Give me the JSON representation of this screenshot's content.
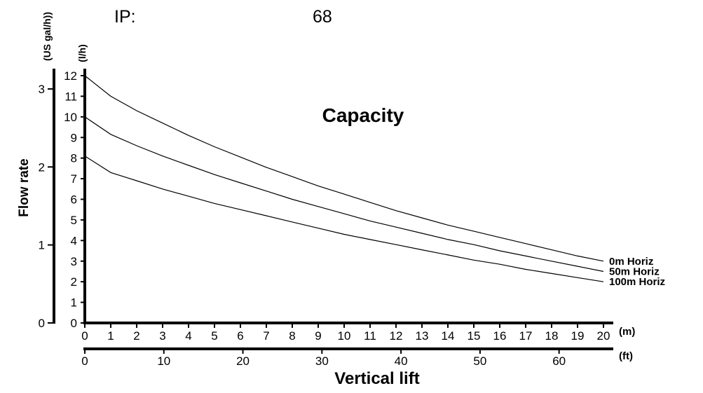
{
  "header": {
    "ip_label": "IP:",
    "ip_value": "68"
  },
  "chart_data": {
    "type": "line",
    "title": "Capacity",
    "xlabel": "Vertical lift",
    "ylabel": "Flow rate",
    "x_unit_primary": "(m)",
    "x_unit_secondary": "(ft)",
    "y_unit_primary": "(l/h)",
    "y_unit_secondary": "(US gal/h))",
    "xlim": [
      0,
      20
    ],
    "ylim": [
      0,
      12.5
    ],
    "x_ticks": [
      "0",
      "1",
      "2",
      "3",
      "4",
      "5",
      "6",
      "7",
      "8",
      "9",
      "10",
      "11",
      "12",
      "13",
      "14",
      "15",
      "16",
      "17",
      "18",
      "19",
      "20"
    ],
    "y_ticks": [
      "0",
      "1",
      "2",
      "3",
      "4",
      "5",
      "6",
      "7",
      "8",
      "9",
      "10",
      "11",
      "12"
    ],
    "ft_ticks": [
      {
        "value": 0,
        "label": "0"
      },
      {
        "value": 10,
        "label": "10"
      },
      {
        "value": 20,
        "label": "20"
      },
      {
        "value": 30,
        "label": "30"
      },
      {
        "value": 40,
        "label": "40"
      },
      {
        "value": 50,
        "label": "50"
      },
      {
        "value": 60,
        "label": "60"
      }
    ],
    "gal_ticks": [
      {
        "value": 0,
        "label": "0"
      },
      {
        "value": 1,
        "label": "1"
      },
      {
        "value": 2,
        "label": "2"
      },
      {
        "value": 3,
        "label": "3"
      }
    ],
    "x": [
      0,
      1,
      2,
      3,
      4,
      5,
      6,
      7,
      8,
      9,
      10,
      11,
      12,
      13,
      14,
      15,
      16,
      17,
      18,
      19,
      20
    ],
    "series": [
      {
        "name": "0m Horiz",
        "values": [
          12.0,
          11.0,
          10.3,
          9.7,
          9.1,
          8.55,
          8.05,
          7.55,
          7.1,
          6.65,
          6.25,
          5.85,
          5.45,
          5.1,
          4.75,
          4.45,
          4.15,
          3.85,
          3.55,
          3.25,
          3.0
        ]
      },
      {
        "name": "50m Horiz",
        "values": [
          10.0,
          9.15,
          8.6,
          8.1,
          7.65,
          7.2,
          6.8,
          6.4,
          6.0,
          5.65,
          5.3,
          4.95,
          4.65,
          4.35,
          4.05,
          3.8,
          3.5,
          3.25,
          3.0,
          2.75,
          2.5
        ]
      },
      {
        "name": "100m Horiz",
        "values": [
          8.1,
          7.3,
          6.9,
          6.5,
          6.15,
          5.8,
          5.5,
          5.2,
          4.9,
          4.6,
          4.3,
          4.05,
          3.8,
          3.55,
          3.3,
          3.05,
          2.85,
          2.6,
          2.4,
          2.2,
          2.0
        ]
      }
    ]
  }
}
